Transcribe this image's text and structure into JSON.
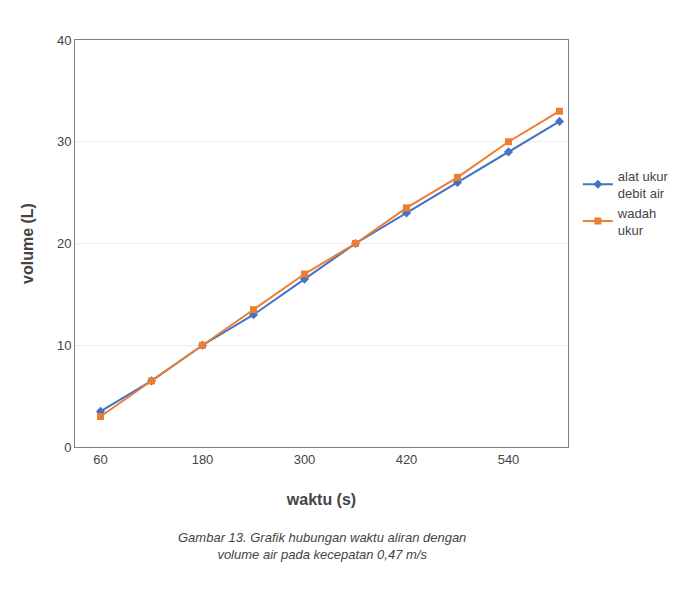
{
  "chart_data": {
    "type": "line",
    "x_label": "waktu (s)",
    "y_label": "volume (L)",
    "xlim": [
      30,
      610
    ],
    "ylim": [
      0,
      40
    ],
    "xticks": [
      60,
      180,
      300,
      420,
      540
    ],
    "yticks": [
      0,
      10,
      20,
      30,
      40
    ],
    "grid": "y",
    "legend": "right",
    "x": [
      60,
      120,
      180,
      240,
      300,
      360,
      420,
      480,
      540,
      600
    ],
    "series": [
      {
        "name": "alat ukur\ndebit air",
        "color": "#4472C4",
        "marker": "diamond",
        "values": [
          3.5,
          6.5,
          10,
          13,
          16.5,
          20,
          23,
          26,
          29,
          32
        ]
      },
      {
        "name": "wadah\nukur",
        "color": "#ED7D31",
        "marker": "square",
        "values": [
          3,
          6.5,
          10,
          13.5,
          17,
          20,
          23.5,
          26.5,
          30,
          33
        ]
      }
    ],
    "annotations": [
      "Gambar 13. Grafik hubungan waktu aliran dengan\nvolume air pada kecepatan 0,47 m/s"
    ]
  }
}
